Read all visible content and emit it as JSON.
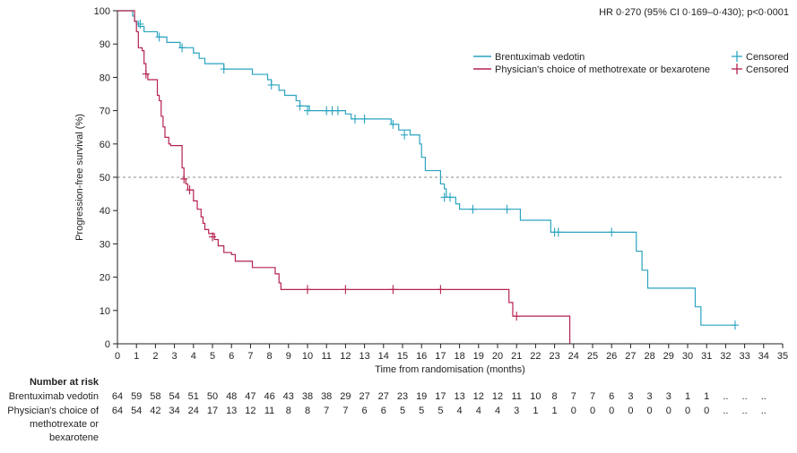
{
  "chart_data": {
    "type": "line",
    "annotation": "HR 0·270 (95% CI 0·169–0·430); p<0·0001",
    "xlabel": "Time from randomisation (months)",
    "ylabel": "Progression-free survival (%)",
    "xlim": [
      0,
      35
    ],
    "ylim": [
      0,
      100
    ],
    "x_ticks": [
      "0",
      "1",
      "2",
      "3",
      "4",
      "5",
      "6",
      "7",
      "8",
      "9",
      "10",
      "11",
      "12",
      "13",
      "14",
      "15",
      "16",
      "17",
      "18",
      "19",
      "20",
      "21",
      "22",
      "23",
      "24",
      "25",
      "26",
      "27",
      "28",
      "29",
      "30",
      "31",
      "32",
      "33",
      "34",
      "35"
    ],
    "y_ticks": [
      "0",
      "10",
      "20",
      "30",
      "40",
      "50",
      "60",
      "70",
      "80",
      "90",
      "100"
    ],
    "reference_line": {
      "y": 50,
      "style": "dashed"
    },
    "colors": {
      "brentuximab": "#2aa3c0",
      "physician": "#b5224e",
      "reference": "#8c8c8c",
      "axis": "#231f20"
    },
    "series": [
      {
        "name": "Brentuximab vedotin",
        "color": "#2aa3c0",
        "steps": [
          [
            0,
            100
          ],
          [
            0.8,
            100
          ],
          [
            0.8,
            98.4
          ],
          [
            0.9,
            96.8
          ],
          [
            1.1,
            95.3
          ],
          [
            1.4,
            93.7
          ],
          [
            2.1,
            92.1
          ],
          [
            2.6,
            90.5
          ],
          [
            3.3,
            88.9
          ],
          [
            4,
            87.3
          ],
          [
            4.3,
            85.7
          ],
          [
            4.6,
            84.1
          ],
          [
            5.6,
            82.5
          ],
          [
            7.1,
            80.9
          ],
          [
            7.9,
            79.3
          ],
          [
            8.1,
            77.7
          ],
          [
            8.5,
            76.1
          ],
          [
            8.8,
            74.6
          ],
          [
            9.4,
            73
          ],
          [
            9.6,
            71.4
          ],
          [
            10.1,
            70
          ],
          [
            11.2,
            70
          ],
          [
            12,
            69
          ],
          [
            12.3,
            67.5
          ],
          [
            14.2,
            67.5
          ],
          [
            14.4,
            65.9
          ],
          [
            14.8,
            64.2
          ],
          [
            15.4,
            62.7
          ],
          [
            15.9,
            60
          ],
          [
            16,
            56
          ],
          [
            16.2,
            52
          ],
          [
            17,
            48
          ],
          [
            17.2,
            46.5
          ],
          [
            17.3,
            44
          ],
          [
            17.8,
            42
          ],
          [
            18,
            40.4
          ],
          [
            21,
            40.4
          ],
          [
            21.2,
            37.1
          ],
          [
            22.6,
            37.1
          ],
          [
            22.8,
            33.5
          ],
          [
            27.2,
            33.5
          ],
          [
            27.3,
            27.8
          ],
          [
            27.6,
            22.1
          ],
          [
            27.9,
            16.7
          ],
          [
            30.3,
            16.7
          ],
          [
            30.4,
            11.1
          ],
          [
            30.7,
            5.6
          ],
          [
            32.5,
            5.6
          ]
        ],
        "censored": [
          [
            1.2,
            96
          ],
          [
            2.2,
            92.1
          ],
          [
            3.4,
            88.9
          ],
          [
            5.6,
            82.5
          ],
          [
            8.1,
            77.7
          ],
          [
            9.6,
            71.4
          ],
          [
            10,
            70
          ],
          [
            11,
            70
          ],
          [
            11.3,
            70
          ],
          [
            11.6,
            70
          ],
          [
            12.5,
            67.5
          ],
          [
            13,
            67.5
          ],
          [
            14.5,
            65.9
          ],
          [
            15.1,
            62.7
          ],
          [
            17.2,
            44
          ],
          [
            17.5,
            44
          ],
          [
            18.7,
            40.4
          ],
          [
            20.5,
            40.4
          ],
          [
            23,
            33.5
          ],
          [
            23.2,
            33.5
          ],
          [
            26,
            33.5
          ],
          [
            32.5,
            5.6
          ]
        ]
      },
      {
        "name": "Physician's choice of methotrexate or bexarotene",
        "color": "#b5224e",
        "steps": [
          [
            0,
            100
          ],
          [
            0.8,
            100
          ],
          [
            0.9,
            96.8
          ],
          [
            1,
            93.7
          ],
          [
            1.1,
            88.9
          ],
          [
            1.3,
            88
          ],
          [
            1.4,
            84.1
          ],
          [
            1.5,
            81
          ],
          [
            1.6,
            79.3
          ],
          [
            2.1,
            77.7
          ],
          [
            2.1,
            74.6
          ],
          [
            2.2,
            73
          ],
          [
            2.3,
            71.4
          ],
          [
            2.3,
            68.3
          ],
          [
            2.4,
            65.1
          ],
          [
            2.5,
            62
          ],
          [
            2.7,
            60
          ],
          [
            2.8,
            59.5
          ],
          [
            3.3,
            59.5
          ],
          [
            3.4,
            56.2
          ],
          [
            3.4,
            52.8
          ],
          [
            3.5,
            49.5
          ],
          [
            3.6,
            48
          ],
          [
            3.7,
            46.2
          ],
          [
            4,
            44.3
          ],
          [
            4,
            42.9
          ],
          [
            4.2,
            40.4
          ],
          [
            4.4,
            38.1
          ],
          [
            4.5,
            36.2
          ],
          [
            4.6,
            34.3
          ],
          [
            4.8,
            33.1
          ],
          [
            5.1,
            31.3
          ],
          [
            5.3,
            29.4
          ],
          [
            5.6,
            27.4
          ],
          [
            6,
            26.8
          ],
          [
            6.2,
            24.8
          ],
          [
            7.1,
            22.9
          ],
          [
            8.1,
            22.9
          ],
          [
            8.3,
            21
          ],
          [
            8.5,
            18.3
          ],
          [
            8.6,
            16.3
          ],
          [
            20.5,
            16.3
          ],
          [
            20.6,
            12.4
          ],
          [
            20.8,
            8.3
          ],
          [
            23.8,
            8.3
          ],
          [
            23.8,
            0
          ]
        ],
        "censored": [
          [
            1.5,
            81
          ],
          [
            3.5,
            49.5
          ],
          [
            3.8,
            46.2
          ],
          [
            5,
            32.1
          ],
          [
            10,
            16.3
          ],
          [
            12,
            16.3
          ],
          [
            14.5,
            16.3
          ],
          [
            17,
            16.3
          ],
          [
            21,
            8.3
          ]
        ]
      }
    ],
    "legend": {
      "placement": "top-right",
      "censored_label": "Censored"
    },
    "number_at_risk": {
      "title": "Number at risk",
      "rows": [
        {
          "label": "Brentuximab vedotin",
          "values": [
            "64",
            "59",
            "58",
            "54",
            "51",
            "50",
            "48",
            "47",
            "46",
            "43",
            "38",
            "38",
            "29",
            "27",
            "27",
            "23",
            "19",
            "17",
            "13",
            "12",
            "12",
            "11",
            "10",
            "8",
            "7",
            "7",
            "6",
            "3",
            "3",
            "3",
            "1",
            "1",
            "..",
            "..",
            ".."
          ]
        },
        {
          "label": "Physician's choice of methotrexate or bexarotene",
          "label_lines": [
            "Physician's choice of",
            "methotrexate or",
            "bexarotene"
          ],
          "values": [
            "64",
            "54",
            "42",
            "34",
            "24",
            "17",
            "13",
            "12",
            "11",
            "8",
            "8",
            "7",
            "7",
            "6",
            "6",
            "5",
            "5",
            "5",
            "4",
            "4",
            "4",
            "3",
            "1",
            "1",
            "0",
            "0",
            "0",
            "0",
            "0",
            "0",
            "0",
            "0",
            "..",
            "..",
            ".."
          ]
        }
      ]
    }
  }
}
